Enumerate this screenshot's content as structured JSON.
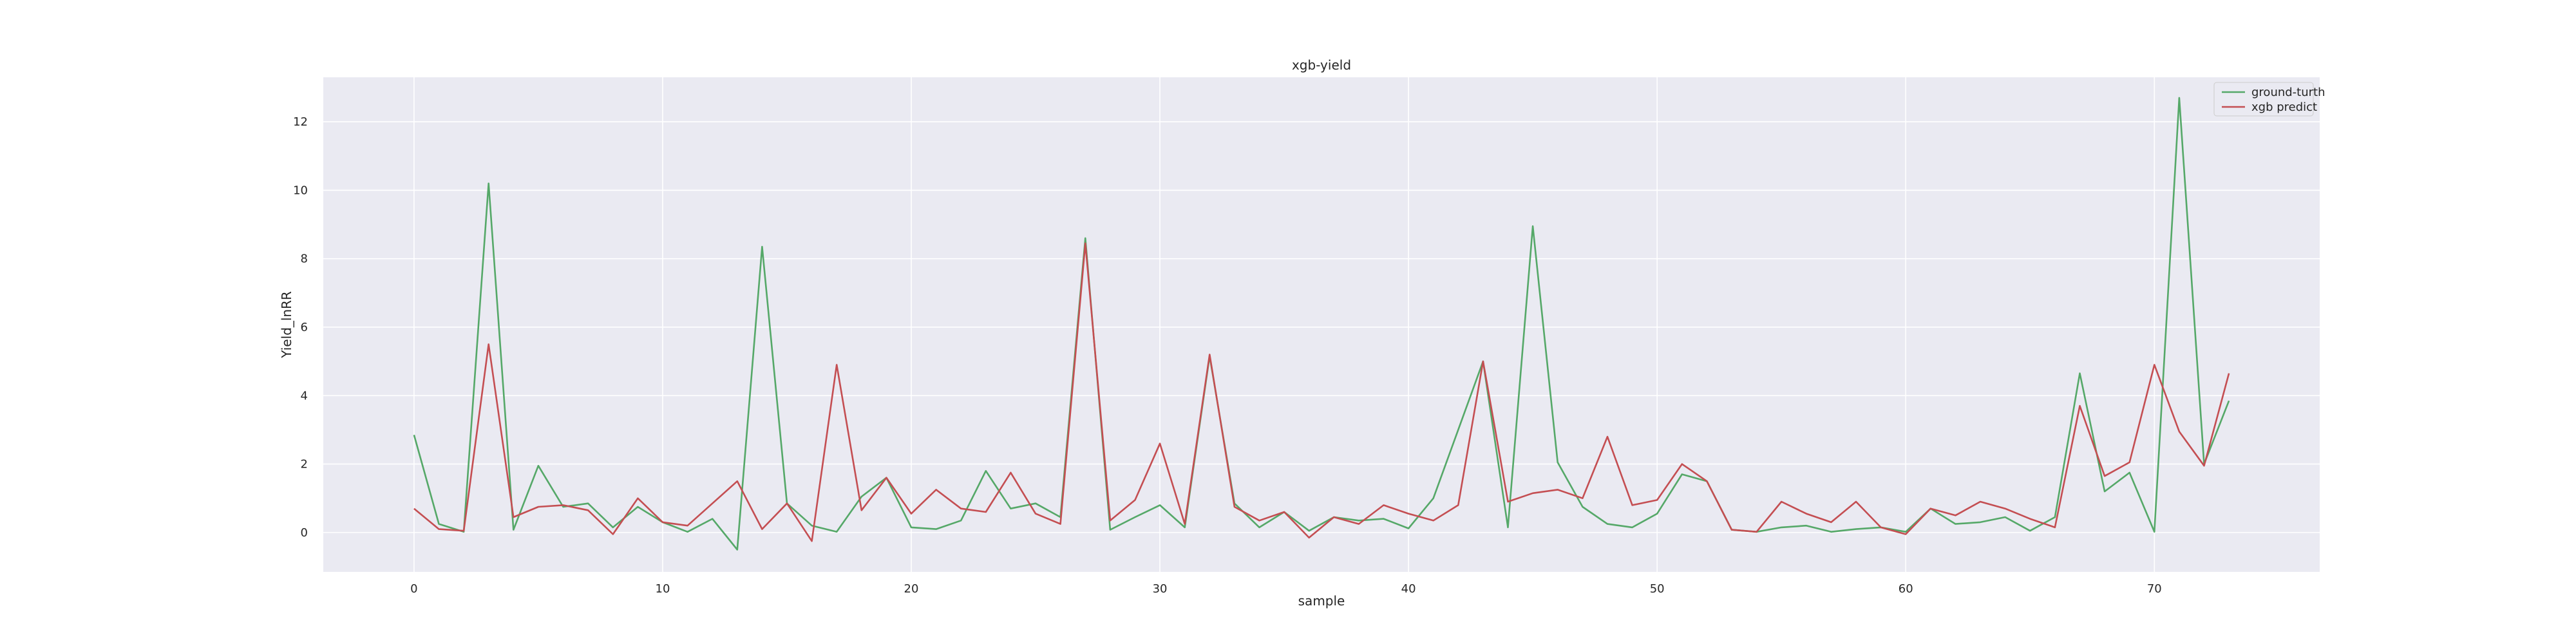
{
  "chart_data": {
    "type": "line",
    "title": "xgb-yield",
    "xlabel": "sample",
    "ylabel": "Yield_lnRR",
    "xlim": [
      -3.65,
      76.65
    ],
    "ylim": [
      -1.15,
      13.3
    ],
    "xticks": [
      0,
      10,
      20,
      30,
      40,
      50,
      60,
      70
    ],
    "yticks": [
      0,
      2,
      4,
      6,
      8,
      10,
      12
    ],
    "grid": true,
    "legend_position": "top-right",
    "x": [
      0,
      1,
      2,
      3,
      4,
      5,
      6,
      7,
      8,
      9,
      10,
      11,
      12,
      13,
      14,
      15,
      16,
      17,
      18,
      19,
      20,
      21,
      22,
      23,
      24,
      25,
      26,
      27,
      28,
      29,
      30,
      31,
      32,
      33,
      34,
      35,
      36,
      37,
      38,
      39,
      40,
      41,
      42,
      43,
      44,
      45,
      46,
      47,
      48,
      49,
      50,
      51,
      52,
      53,
      54,
      55,
      56,
      57,
      58,
      59,
      60,
      61,
      62,
      63,
      64,
      65,
      66,
      67,
      68,
      69,
      70,
      71,
      72,
      73
    ],
    "series": [
      {
        "name": "ground-turth",
        "color": "#55a868",
        "values": [
          2.85,
          0.25,
          0.02,
          10.2,
          0.08,
          1.95,
          0.75,
          0.85,
          0.15,
          0.75,
          0.3,
          0.02,
          0.4,
          -0.5,
          8.35,
          0.85,
          0.2,
          0.02,
          1.05,
          1.6,
          0.15,
          0.1,
          0.35,
          1.8,
          0.7,
          0.85,
          0.45,
          8.6,
          0.08,
          0.45,
          0.8,
          0.15,
          5.15,
          0.85,
          0.15,
          0.6,
          0.05,
          0.45,
          0.35,
          0.4,
          0.12,
          1.0,
          3.0,
          5.0,
          0.15,
          8.95,
          2.05,
          0.75,
          0.25,
          0.15,
          0.55,
          1.7,
          1.5,
          0.08,
          0.02,
          0.15,
          0.2,
          0.02,
          0.1,
          0.15,
          0.02,
          0.7,
          0.25,
          0.3,
          0.45,
          0.05,
          0.45,
          4.65,
          1.2,
          1.75,
          0.02,
          12.7,
          2.0,
          3.85
        ]
      },
      {
        "name": "xgb predict",
        "color": "#c44e52",
        "values": [
          0.7,
          0.1,
          0.05,
          5.5,
          0.45,
          0.75,
          0.8,
          0.65,
          -0.05,
          1.0,
          0.3,
          0.2,
          0.85,
          1.5,
          0.1,
          0.85,
          -0.25,
          4.9,
          0.65,
          1.6,
          0.55,
          1.25,
          0.7,
          0.6,
          1.75,
          0.55,
          0.25,
          8.45,
          0.35,
          0.95,
          2.6,
          0.25,
          5.2,
          0.75,
          0.35,
          0.6,
          -0.15,
          0.45,
          0.25,
          0.8,
          0.55,
          0.35,
          0.8,
          5.0,
          0.9,
          1.15,
          1.25,
          1.0,
          2.8,
          0.8,
          0.95,
          2.0,
          1.5,
          0.08,
          0.02,
          0.9,
          0.55,
          0.3,
          0.9,
          0.15,
          -0.05,
          0.7,
          0.5,
          0.9,
          0.7,
          0.4,
          0.15,
          3.7,
          1.65,
          2.05,
          4.9,
          2.95,
          1.95,
          4.65
        ]
      }
    ]
  },
  "colors": {
    "plot_background": "#eaeaf2",
    "grid": "#ffffff",
    "ground_truth": "#55a868",
    "predict": "#c44e52"
  }
}
